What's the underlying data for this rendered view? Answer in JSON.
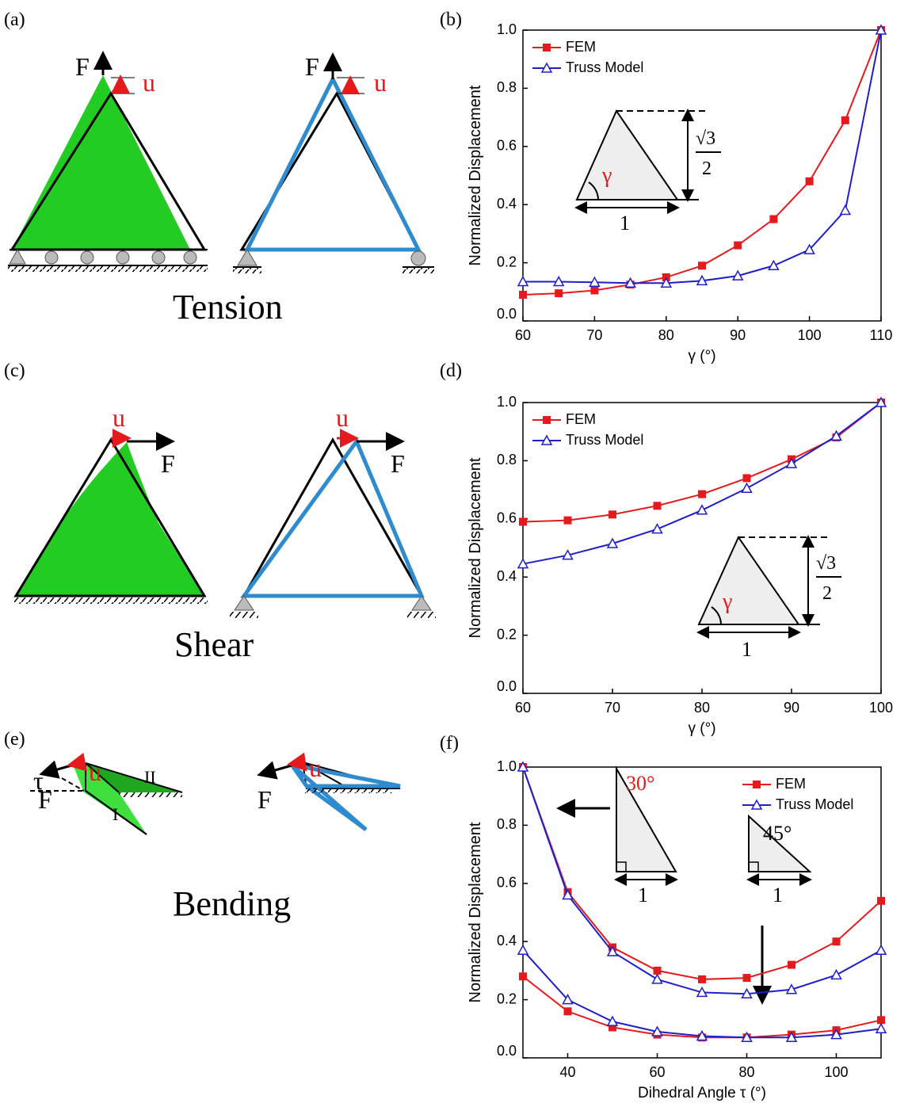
{
  "figure": {
    "panels": [
      "(a)",
      "(b)",
      "(c)",
      "(d)",
      "(e)",
      "(f)"
    ],
    "tension": {
      "title": "Tension",
      "labels": [
        "F",
        "u",
        "F",
        "u"
      ]
    },
    "shear": {
      "title": "Shear",
      "labels": [
        "u",
        "F",
        "u",
        "F"
      ]
    },
    "bending": {
      "title": "Bending",
      "labels": [
        "u",
        "F",
        "τ",
        "I",
        "II",
        "u",
        "F"
      ]
    }
  },
  "chart_data": [
    {
      "type": "line",
      "xlabel": "γ (°)",
      "ylabel": "Normalized Displacement",
      "x": [
        60,
        65,
        70,
        75,
        80,
        85,
        90,
        95,
        100,
        105,
        110
      ],
      "series": [
        {
          "name": "FEM",
          "color": "#e41a1c",
          "marker": "square",
          "values": [
            0.09,
            0.095,
            0.105,
            0.125,
            0.15,
            0.19,
            0.26,
            0.35,
            0.48,
            0.69,
            1.0
          ]
        },
        {
          "name": "Truss Model",
          "color": "#1f1fc8",
          "marker": "triangle",
          "values": [
            0.135,
            0.135,
            0.133,
            0.13,
            0.13,
            0.138,
            0.155,
            0.19,
            0.245,
            0.38,
            1.0
          ]
        }
      ],
      "xlim": [
        60,
        110
      ],
      "xticks": [
        60,
        70,
        80,
        90,
        100,
        110
      ],
      "ylim": [
        0,
        1
      ],
      "yticks": [
        {
          "value": 0,
          "label": "0.0"
        },
        0.2,
        0.4,
        0.6,
        0.8,
        {
          "value": 1,
          "label": "1.0"
        }
      ],
      "legend": "upper left",
      "annotations": [
        "γ",
        "1",
        "√3",
        "2"
      ]
    },
    {
      "type": "line",
      "xlabel": "γ (°)",
      "ylabel": "Normalized Displacement",
      "x": [
        60,
        65,
        70,
        75,
        80,
        85,
        90,
        95,
        100
      ],
      "series": [
        {
          "name": "FEM",
          "color": "#e41a1c",
          "marker": "square",
          "values": [
            0.59,
            0.595,
            0.615,
            0.645,
            0.685,
            0.74,
            0.805,
            0.88,
            1.0
          ]
        },
        {
          "name": "Truss Model",
          "color": "#1f1fc8",
          "marker": "triangle",
          "values": [
            0.445,
            0.475,
            0.515,
            0.565,
            0.63,
            0.705,
            0.79,
            0.885,
            1.0
          ]
        }
      ],
      "xlim": [
        60,
        100
      ],
      "xticks": [
        60,
        70,
        80,
        90,
        100
      ],
      "ylim": [
        0,
        1
      ],
      "yticks": [
        {
          "value": 0,
          "label": "0.0"
        },
        0.2,
        0.4,
        0.6,
        0.8,
        {
          "value": 1,
          "label": "1.0"
        }
      ],
      "legend": "upper left",
      "annotations": [
        "γ",
        "1",
        "√3",
        "2"
      ]
    },
    {
      "type": "line",
      "xlabel": "Dihedral Angle τ (°)",
      "ylabel": "Normalized Displacement",
      "x": [
        30,
        40,
        50,
        60,
        70,
        80,
        90,
        100,
        110
      ],
      "series": [
        {
          "name": "FEM",
          "color": "#e41a1c",
          "marker": "square",
          "values": [
            1.0,
            0.57,
            0.38,
            0.3,
            0.27,
            0.275,
            0.32,
            0.4,
            0.54
          ]
        },
        {
          "name": "Truss Model",
          "color": "#1f1fc8",
          "marker": "triangle",
          "values": [
            1.0,
            0.56,
            0.365,
            0.27,
            0.225,
            0.22,
            0.235,
            0.285,
            0.37
          ]
        },
        {
          "color": "#e41a1c",
          "marker": "square",
          "values": [
            0.28,
            0.16,
            0.105,
            0.08,
            0.07,
            0.07,
            0.08,
            0.095,
            0.13
          ]
        },
        {
          "color": "#1f1fc8",
          "marker": "triangle",
          "values": [
            0.37,
            0.2,
            0.125,
            0.09,
            0.075,
            0.07,
            0.07,
            0.08,
            0.1
          ]
        }
      ],
      "xlim": [
        30,
        110
      ],
      "xticks": [
        40,
        60,
        80,
        100
      ],
      "ylim": [
        0,
        1
      ],
      "yticks": [
        {
          "value": 0,
          "label": "0.0"
        },
        0.2,
        0.4,
        0.6,
        0.8,
        {
          "value": 1,
          "label": "1.0"
        }
      ],
      "legend": "upper right",
      "annotations": [
        "30°",
        "1",
        "45°",
        "1"
      ]
    }
  ]
}
